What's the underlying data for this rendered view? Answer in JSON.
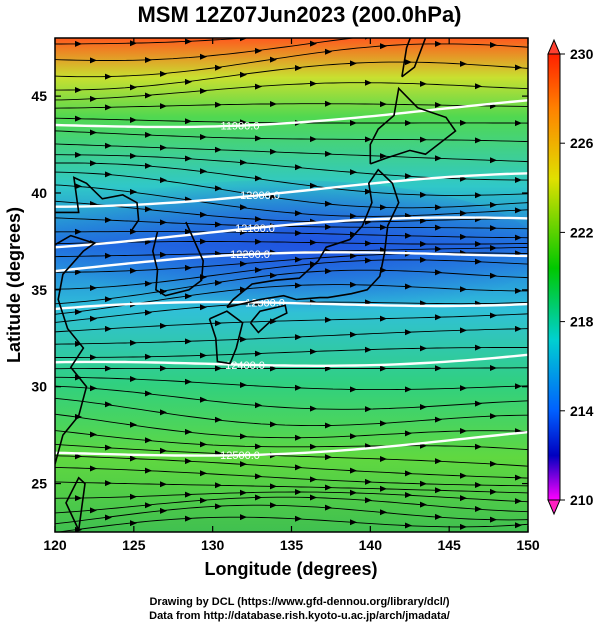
{
  "title": "MSM 12Z07Jun2023 (200.0hPa)",
  "map": {
    "x_axis_label": "Longitude (degrees)",
    "y_axis_label": "Latitude  (degrees)",
    "lon_range": [
      120,
      150
    ],
    "lat_range": [
      22.5,
      48
    ],
    "x_ticks": [
      "120",
      "125",
      "130",
      "135",
      "140",
      "145",
      "150"
    ],
    "y_ticks": [
      "25",
      "30",
      "35",
      "40",
      "45"
    ],
    "contour_labels": [
      "11900.0",
      "12000.0",
      "12100.0",
      "12200.0",
      "12300.0",
      "12400.0",
      "12500.0"
    ],
    "colorbar": {
      "labels": [
        "230",
        "226",
        "222",
        "218",
        "214",
        "210"
      ],
      "range": [
        210,
        230
      ]
    }
  },
  "credits": {
    "line1": "Drawing by DCL (https://www.gfd-dennou.org/library/dcl/)",
    "line2": "Data from http://database.rish.kyoto-u.ac.jp/arch/jmadata/"
  },
  "colors": {
    "min": "#ff00ff",
    "low": "#0000ff",
    "mid_low": "#00d8d8",
    "mid": "#00c800",
    "mid_high": "#d8e800",
    "high": "#ff7000",
    "max": "#ff0000"
  }
}
